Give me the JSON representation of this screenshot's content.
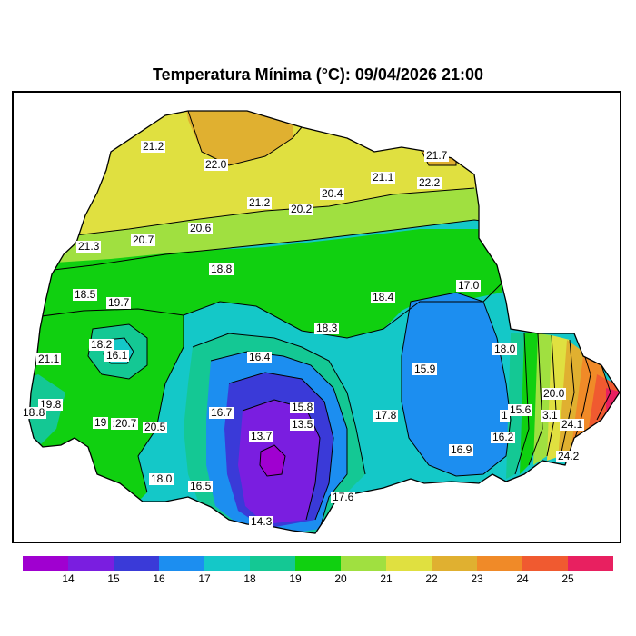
{
  "title": "Temperatura Mínima (°C): 09/04/2026 21:00",
  "legend": {
    "colors": [
      "#a000d0",
      "#7a1ee0",
      "#3a3ad8",
      "#1c8ef0",
      "#14c8c8",
      "#14c894",
      "#10d010",
      "#a0e040",
      "#e0e040",
      "#e0b030",
      "#f08a28",
      "#f05a30",
      "#e82060"
    ],
    "ticks": [
      "14",
      "15",
      "16",
      "17",
      "18",
      "19",
      "20",
      "21",
      "22",
      "23",
      "24",
      "25"
    ]
  },
  "contour_labels": [
    {
      "text": "21.2"
    },
    {
      "text": "22.0"
    },
    {
      "text": "21.7"
    },
    {
      "text": "21.1"
    },
    {
      "text": "22.2"
    },
    {
      "text": "20.4"
    },
    {
      "text": "21.2"
    },
    {
      "text": "20.2"
    },
    {
      "text": "20.6"
    },
    {
      "text": "21.3"
    },
    {
      "text": "20.7"
    },
    {
      "text": "18.8"
    },
    {
      "text": "18.5"
    },
    {
      "text": "19.7"
    },
    {
      "text": "18.4"
    },
    {
      "text": "17.0"
    },
    {
      "text": "18.3"
    },
    {
      "text": "18.2"
    },
    {
      "text": "16.1"
    },
    {
      "text": "16.4"
    },
    {
      "text": "21.1"
    },
    {
      "text": "18.0"
    },
    {
      "text": "15.9"
    },
    {
      "text": "19.8"
    },
    {
      "text": "17.8"
    },
    {
      "text": "15.8"
    },
    {
      "text": "20.7"
    },
    {
      "text": "17.8"
    },
    {
      "text": "15.6"
    },
    {
      "text": "16.7"
    },
    {
      "text": "13.5"
    },
    {
      "text": "19"
    },
    {
      "text": "20.7"
    },
    {
      "text": "20.5"
    },
    {
      "text": "1"
    },
    {
      "text": "20.0"
    },
    {
      "text": "3.1"
    },
    {
      "text": "24.1"
    },
    {
      "text": "13.7"
    },
    {
      "text": "16.2"
    },
    {
      "text": "16.9"
    },
    {
      "text": "24.2"
    },
    {
      "text": "18.0"
    },
    {
      "text": "16.5"
    },
    {
      "text": "17.6"
    },
    {
      "text": "14.3"
    },
    {
      "text": "18"
    }
  ]
}
